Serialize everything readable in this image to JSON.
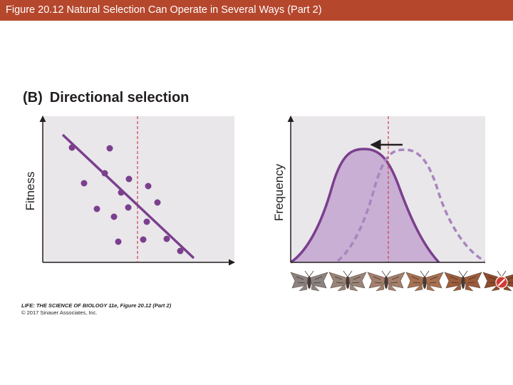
{
  "header": {
    "title": "Figure 20.12  Natural Selection Can Operate in Several Ways (Part 2)"
  },
  "panel": {
    "label": "(B)",
    "title": "Directional selection"
  },
  "left_plot": {
    "ylabel": "Fitness"
  },
  "right_plot": {
    "ylabel": "Frequency"
  },
  "credit": {
    "line1": "LIFE: THE SCIENCE OF BIOLOGY 11e, Figure 20.12 (Part 2)",
    "line2": "© 2017 Sinauer Associates, Inc."
  },
  "colors": {
    "header_bg": "#b5472d",
    "plot_bg": "#e9e7ea",
    "purple": "#7b3f8e",
    "purple_light": "#a985be",
    "purple_fill": "#c9afd3",
    "dashed_line": "#cf4050",
    "axis": "#231f20"
  },
  "moths": {
    "icons": [
      "moth-icon",
      "moth-icon",
      "moth-icon",
      "moth-icon",
      "moth-icon",
      "prohibited-icon"
    ],
    "wing_colors": [
      "#8c8380",
      "#9a8478",
      "#a57f6c",
      "#a8704f",
      "#9d5c3a",
      "#8e4a2a"
    ]
  }
}
